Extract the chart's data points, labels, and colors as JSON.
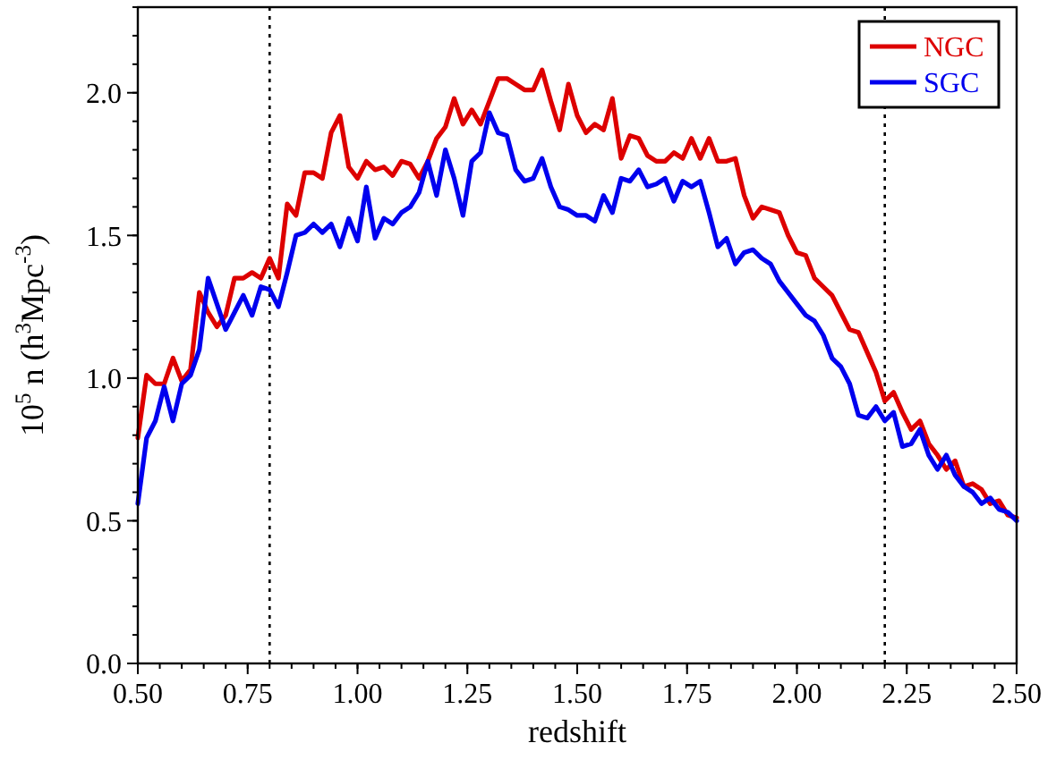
{
  "chart_data": {
    "type": "line",
    "xlabel": "redshift",
    "ylabel": "10$^{5}$ n (h$^{3}$Mpc$^{-3}$)",
    "x": [
      0.5,
      0.52,
      0.54,
      0.56,
      0.58,
      0.6,
      0.62,
      0.64,
      0.66,
      0.68,
      0.7,
      0.72,
      0.74,
      0.76,
      0.78,
      0.8,
      0.82,
      0.84,
      0.86,
      0.88,
      0.9,
      0.92,
      0.94,
      0.96,
      0.98,
      1.0,
      1.02,
      1.04,
      1.06,
      1.08,
      1.1,
      1.12,
      1.14,
      1.16,
      1.18,
      1.2,
      1.22,
      1.24,
      1.26,
      1.28,
      1.3,
      1.32,
      1.34,
      1.36,
      1.38,
      1.4,
      1.42,
      1.44,
      1.46,
      1.48,
      1.5,
      1.52,
      1.54,
      1.56,
      1.58,
      1.6,
      1.62,
      1.64,
      1.66,
      1.68,
      1.7,
      1.72,
      1.74,
      1.76,
      1.78,
      1.8,
      1.82,
      1.84,
      1.86,
      1.88,
      1.9,
      1.92,
      1.94,
      1.96,
      1.98,
      2.0,
      2.02,
      2.04,
      2.06,
      2.08,
      2.1,
      2.12,
      2.14,
      2.16,
      2.18,
      2.2,
      2.22,
      2.24,
      2.26,
      2.28,
      2.3,
      2.32,
      2.34,
      2.36,
      2.38,
      2.4,
      2.42,
      2.44,
      2.46,
      2.48,
      2.5
    ],
    "series": [
      {
        "name": "NGC",
        "color": "#dd0000",
        "values": [
          0.79,
          1.01,
          0.98,
          0.98,
          1.07,
          0.99,
          1.03,
          1.3,
          1.23,
          1.18,
          1.22,
          1.35,
          1.35,
          1.37,
          1.35,
          1.42,
          1.35,
          1.61,
          1.57,
          1.72,
          1.72,
          1.7,
          1.86,
          1.92,
          1.74,
          1.7,
          1.76,
          1.73,
          1.74,
          1.71,
          1.76,
          1.75,
          1.7,
          1.76,
          1.84,
          1.88,
          1.98,
          1.89,
          1.94,
          1.89,
          1.97,
          2.05,
          2.05,
          2.03,
          2.01,
          2.01,
          2.08,
          1.97,
          1.87,
          2.03,
          1.92,
          1.86,
          1.89,
          1.87,
          1.98,
          1.77,
          1.85,
          1.84,
          1.78,
          1.76,
          1.76,
          1.79,
          1.77,
          1.84,
          1.77,
          1.84,
          1.76,
          1.76,
          1.77,
          1.64,
          1.56,
          1.6,
          1.59,
          1.58,
          1.5,
          1.44,
          1.43,
          1.35,
          1.32,
          1.29,
          1.23,
          1.17,
          1.16,
          1.09,
          1.02,
          0.92,
          0.95,
          0.88,
          0.82,
          0.85,
          0.77,
          0.73,
          0.68,
          0.71,
          0.62,
          0.63,
          0.61,
          0.56,
          0.57,
          0.52,
          0.51
        ]
      },
      {
        "name": "SGC",
        "color": "#0000ee",
        "values": [
          0.56,
          0.79,
          0.85,
          0.97,
          0.85,
          0.98,
          1.01,
          1.1,
          1.35,
          1.26,
          1.17,
          1.23,
          1.29,
          1.22,
          1.32,
          1.31,
          1.25,
          1.37,
          1.5,
          1.51,
          1.54,
          1.51,
          1.54,
          1.46,
          1.56,
          1.48,
          1.67,
          1.49,
          1.56,
          1.54,
          1.58,
          1.6,
          1.65,
          1.76,
          1.64,
          1.8,
          1.7,
          1.57,
          1.76,
          1.79,
          1.93,
          1.86,
          1.85,
          1.73,
          1.69,
          1.7,
          1.77,
          1.67,
          1.6,
          1.59,
          1.57,
          1.57,
          1.55,
          1.64,
          1.58,
          1.7,
          1.69,
          1.73,
          1.67,
          1.68,
          1.7,
          1.62,
          1.69,
          1.67,
          1.69,
          1.58,
          1.46,
          1.49,
          1.4,
          1.44,
          1.45,
          1.42,
          1.4,
          1.34,
          1.3,
          1.26,
          1.22,
          1.2,
          1.15,
          1.07,
          1.04,
          0.98,
          0.87,
          0.86,
          0.9,
          0.85,
          0.88,
          0.76,
          0.77,
          0.82,
          0.73,
          0.68,
          0.73,
          0.66,
          0.62,
          0.6,
          0.56,
          0.58,
          0.54,
          0.53,
          0.5
        ]
      }
    ],
    "xlim": [
      0.5,
      2.5
    ],
    "xticks": [
      {
        "value": 0.5,
        "label": "0.50"
      },
      {
        "value": 0.75,
        "label": "0.75"
      },
      {
        "value": 1.0,
        "label": "1.00"
      },
      {
        "value": 1.25,
        "label": "1.25"
      },
      {
        "value": 1.5,
        "label": "1.50"
      },
      {
        "value": 1.75,
        "label": "1.75"
      },
      {
        "value": 2.0,
        "label": "2.00"
      },
      {
        "value": 2.25,
        "label": "2.25"
      },
      {
        "value": 2.5,
        "label": "2.50"
      }
    ],
    "ylim": [
      0,
      2.3
    ],
    "yticks": [
      {
        "value": 0,
        "label": "0.0"
      },
      {
        "value": 0.5,
        "label": "0.5"
      },
      {
        "value": 1.0,
        "label": "1.0"
      },
      {
        "value": 1.5,
        "label": "1.5"
      },
      {
        "value": 2.0,
        "label": "2.0"
      }
    ],
    "ref_lines": [
      {
        "axis": "x",
        "value": 0.8,
        "color": "#000000",
        "line_style": "dotted"
      },
      {
        "axis": "x",
        "value": 2.2,
        "color": "#000000",
        "line_style": "dotted"
      }
    ],
    "legend": "top right",
    "grid": false,
    "marker": "none",
    "line_style": "solid"
  }
}
